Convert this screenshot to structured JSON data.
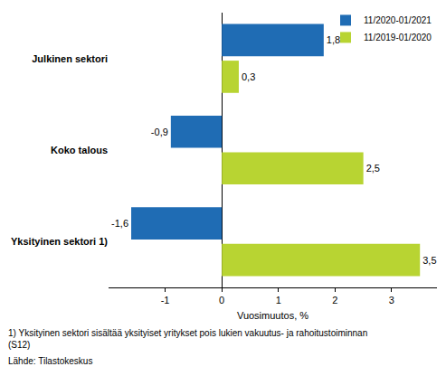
{
  "chart_data": {
    "type": "bar",
    "orientation": "horizontal",
    "categories": [
      "Julkinen sektori",
      "Koko talous",
      "Yksityinen sektori 1)"
    ],
    "series": [
      {
        "name": "11/2020-01/2021",
        "color": "#1f6cb4",
        "values": [
          1.8,
          -0.9,
          -1.6
        ],
        "value_labels": [
          "1,8",
          "-0,9",
          "-1,6"
        ]
      },
      {
        "name": "11/2019-01/2020",
        "color": "#b8d432",
        "values": [
          0.3,
          2.5,
          3.5
        ],
        "value_labels": [
          "0,3",
          "2,5",
          "3,5"
        ]
      }
    ],
    "x_label": "Vuosimuutos, %",
    "xlim": [
      -2,
      3.8
    ],
    "xticks": [
      -1,
      0,
      1,
      2,
      3
    ],
    "grid": false,
    "legend": "top-right",
    "data_labels": true,
    "annotations": [
      "1) Yksityinen sektori sisältää yksityiset yritykset pois lukien vakuutus- ja rahoitustoiminnan\n(S12)",
      "Lähde: Tilastokeskus"
    ]
  }
}
